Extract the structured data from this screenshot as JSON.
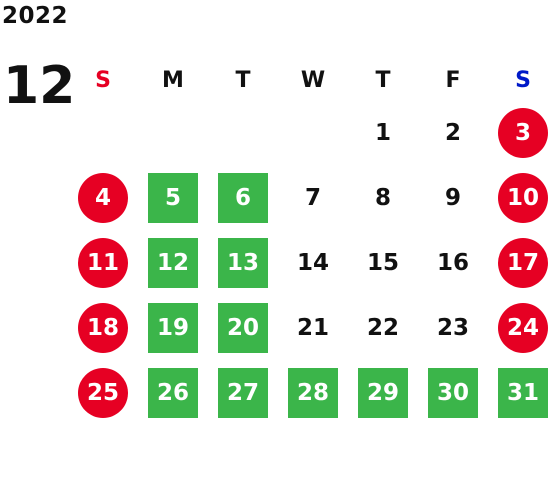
{
  "year": "2022",
  "month": "12",
  "colors": {
    "sunday_header": "#e60023",
    "saturday_header": "#0019c8",
    "weekday_header": "#111111",
    "holiday_circle": "#e60023",
    "green_day": "#3bb54a"
  },
  "weekdays": [
    "S",
    "M",
    "T",
    "W",
    "T",
    "F",
    "S"
  ],
  "weeks": [
    [
      null,
      null,
      null,
      null,
      "1",
      "2",
      "3"
    ],
    [
      "4",
      "5",
      "6",
      "7",
      "8",
      "9",
      "10"
    ],
    [
      "11",
      "12",
      "13",
      "14",
      "15",
      "16",
      "17"
    ],
    [
      "18",
      "19",
      "20",
      "21",
      "22",
      "23",
      "24"
    ],
    [
      "25",
      "26",
      "27",
      "28",
      "29",
      "30",
      "31"
    ]
  ],
  "styles": [
    [
      null,
      null,
      null,
      null,
      "plain",
      "plain",
      "red"
    ],
    [
      "red",
      "green",
      "green",
      "plain",
      "plain",
      "plain",
      "red"
    ],
    [
      "red",
      "green",
      "green",
      "plain",
      "plain",
      "plain",
      "red"
    ],
    [
      "red",
      "green",
      "green",
      "plain",
      "plain",
      "plain",
      "red"
    ],
    [
      "red",
      "green",
      "green",
      "green",
      "green",
      "green",
      "green"
    ]
  ]
}
